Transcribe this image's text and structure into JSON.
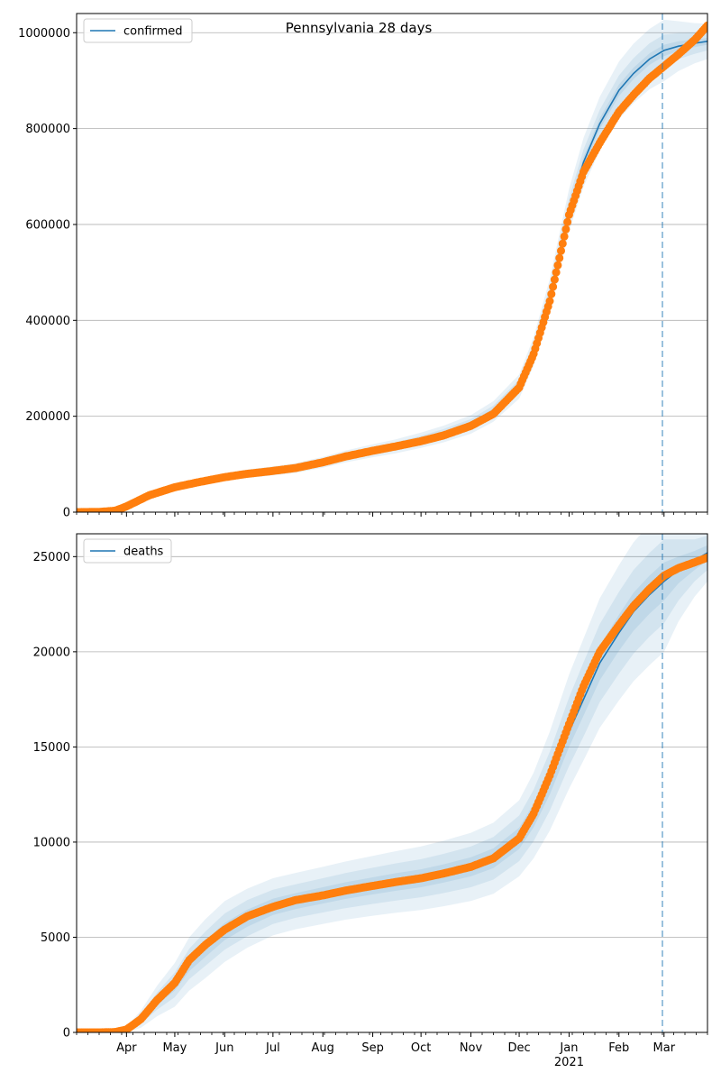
{
  "title": "Pennsylvania 28 days",
  "colors": {
    "model": "#1f77b4",
    "observed": "#ff7f0e",
    "band": "#1f77b4",
    "grid": "#b0b0b0",
    "forecast_line": "#1f77b4"
  },
  "x_ticks": [
    {
      "label": "Apr",
      "date": "2020-04-01"
    },
    {
      "label": "May",
      "date": "2020-05-01"
    },
    {
      "label": "Jun",
      "date": "2020-06-01"
    },
    {
      "label": "Jul",
      "date": "2020-07-01"
    },
    {
      "label": "Aug",
      "date": "2020-08-01"
    },
    {
      "label": "Sep",
      "date": "2020-09-01"
    },
    {
      "label": "Oct",
      "date": "2020-10-01"
    },
    {
      "label": "Nov",
      "date": "2020-11-01"
    },
    {
      "label": "Dec",
      "date": "2020-12-01"
    },
    {
      "label": "Jan",
      "date": "2021-01-01"
    },
    {
      "label": "Feb",
      "date": "2021-02-01"
    },
    {
      "label": "Mar",
      "date": "2021-03-01"
    }
  ],
  "x_year_label": {
    "label": "2021",
    "date": "2021-01-01"
  },
  "chart_data": [
    {
      "type": "line",
      "legend": "confirmed",
      "legend_position": "top-left",
      "grid": "y",
      "xlim": [
        "2020-03-01",
        "2021-03-28"
      ],
      "ylim": [
        0,
        1040000
      ],
      "yticks": [
        0,
        200000,
        400000,
        600000,
        800000,
        1000000
      ],
      "ytick_labels": [
        "0",
        "200000",
        "400000",
        "600000",
        "800000",
        "1000000"
      ],
      "forecast_start": "2021-02-28",
      "observed": {
        "dates": [
          "2020-03-01",
          "2020-03-15",
          "2020-03-25",
          "2020-04-01",
          "2020-04-15",
          "2020-05-01",
          "2020-05-15",
          "2020-06-01",
          "2020-06-15",
          "2020-07-01",
          "2020-07-15",
          "2020-08-01",
          "2020-08-15",
          "2020-09-01",
          "2020-09-15",
          "2020-10-01",
          "2020-10-15",
          "2020-11-01",
          "2020-11-15",
          "2020-12-01",
          "2020-12-10",
          "2020-12-20",
          "2021-01-01",
          "2021-01-10",
          "2021-01-20",
          "2021-02-01",
          "2021-02-10",
          "2021-02-20",
          "2021-03-01",
          "2021-03-10",
          "2021-03-20",
          "2021-03-28"
        ],
        "values": [
          0,
          500,
          3000,
          12000,
          35000,
          52000,
          62000,
          73000,
          80000,
          86000,
          92000,
          104000,
          116000,
          128000,
          137000,
          148000,
          160000,
          180000,
          205000,
          260000,
          330000,
          440000,
          620000,
          710000,
          770000,
          835000,
          870000,
          905000,
          930000,
          955000,
          985000,
          1015000
        ]
      },
      "model": {
        "dates": [
          "2020-03-01",
          "2020-03-15",
          "2020-03-25",
          "2020-04-01",
          "2020-04-15",
          "2020-05-01",
          "2020-05-15",
          "2020-06-01",
          "2020-06-15",
          "2020-07-01",
          "2020-07-15",
          "2020-08-01",
          "2020-08-15",
          "2020-09-01",
          "2020-09-15",
          "2020-10-01",
          "2020-10-15",
          "2020-11-01",
          "2020-11-15",
          "2020-12-01",
          "2020-12-10",
          "2020-12-20",
          "2021-01-01",
          "2021-01-10",
          "2021-01-20",
          "2021-02-01",
          "2021-02-10",
          "2021-02-20",
          "2021-03-01",
          "2021-03-10",
          "2021-03-20",
          "2021-03-28"
        ],
        "values": [
          0,
          500,
          3000,
          12000,
          35000,
          52000,
          62000,
          73000,
          80000,
          86000,
          92000,
          104000,
          116000,
          128000,
          137000,
          150000,
          163000,
          183000,
          210000,
          262000,
          335000,
          450000,
          630000,
          730000,
          810000,
          880000,
          915000,
          945000,
          963000,
          972000,
          978000,
          982000
        ],
        "band_widths": [
          [
            0,
            0,
            0,
            0,
            0,
            0,
            0,
            0,
            0,
            0,
            0,
            0,
            0,
            0,
            0,
            0,
            0,
            0,
            0,
            0,
            0,
            0,
            0,
            0,
            0,
            0,
            0,
            0,
            0,
            0,
            0,
            0
          ],
          [
            0,
            200,
            500,
            1000,
            1500,
            2000,
            2200,
            2400,
            2600,
            2800,
            3000,
            3300,
            3600,
            3900,
            4200,
            4600,
            5000,
            5500,
            6000,
            7000,
            8000,
            9000,
            10000,
            11000,
            11500,
            12000,
            12000,
            12000,
            12000,
            10000,
            8000,
            7000
          ],
          [
            0,
            400,
            1000,
            2000,
            3000,
            4000,
            4500,
            5000,
            5400,
            5800,
            6200,
            6800,
            7400,
            8000,
            8600,
            9400,
            10200,
            11300,
            12500,
            14500,
            17000,
            20000,
            24000,
            27000,
            29000,
            31000,
            32000,
            33000,
            33000,
            27000,
            22000,
            19000
          ],
          [
            0,
            700,
            2000,
            3500,
            5000,
            6500,
            7300,
            8000,
            8700,
            9400,
            10100,
            11200,
            12300,
            13500,
            14600,
            16000,
            17400,
            19300,
            21500,
            25000,
            30000,
            36000,
            44000,
            51000,
            56000,
            60000,
            62000,
            63000,
            64000,
            52000,
            42000,
            37000
          ]
        ]
      }
    },
    {
      "type": "line",
      "legend": "deaths",
      "legend_position": "top-left",
      "grid": "y",
      "xlim": [
        "2020-03-01",
        "2021-03-28"
      ],
      "ylim": [
        0,
        26200
      ],
      "yticks": [
        0,
        5000,
        10000,
        15000,
        20000,
        25000
      ],
      "ytick_labels": [
        "0",
        "5000",
        "10000",
        "15000",
        "20000",
        "25000"
      ],
      "forecast_start": "2021-02-28",
      "observed": {
        "dates": [
          "2020-03-01",
          "2020-03-15",
          "2020-03-25",
          "2020-04-01",
          "2020-04-10",
          "2020-04-20",
          "2020-05-01",
          "2020-05-10",
          "2020-05-20",
          "2020-06-01",
          "2020-06-15",
          "2020-07-01",
          "2020-07-15",
          "2020-08-01",
          "2020-08-15",
          "2020-09-01",
          "2020-09-15",
          "2020-10-01",
          "2020-10-15",
          "2020-11-01",
          "2020-11-15",
          "2020-12-01",
          "2020-12-10",
          "2020-12-20",
          "2021-01-01",
          "2021-01-10",
          "2021-01-20",
          "2021-02-01",
          "2021-02-10",
          "2021-02-20",
          "2021-03-01",
          "2021-03-10",
          "2021-03-20",
          "2021-03-28"
        ],
        "values": [
          0,
          0,
          20,
          150,
          700,
          1700,
          2600,
          3800,
          4600,
          5400,
          6100,
          6600,
          6950,
          7200,
          7450,
          7700,
          7900,
          8100,
          8350,
          8700,
          9150,
          10200,
          11500,
          13500,
          16200,
          18200,
          20000,
          21400,
          22400,
          23300,
          24000,
          24400,
          24700,
          24950
        ]
      },
      "model": {
        "dates": [
          "2020-03-01",
          "2020-03-15",
          "2020-03-25",
          "2020-04-01",
          "2020-04-10",
          "2020-04-20",
          "2020-05-01",
          "2020-05-10",
          "2020-05-20",
          "2020-06-01",
          "2020-06-15",
          "2020-07-01",
          "2020-07-15",
          "2020-08-01",
          "2020-08-15",
          "2020-09-01",
          "2020-09-15",
          "2020-10-01",
          "2020-10-15",
          "2020-11-01",
          "2020-11-15",
          "2020-12-01",
          "2020-12-10",
          "2020-12-20",
          "2021-01-01",
          "2021-01-10",
          "2021-01-20",
          "2021-02-01",
          "2021-02-10",
          "2021-02-20",
          "2021-03-01",
          "2021-03-10",
          "2021-03-20",
          "2021-03-28"
        ],
        "values": [
          0,
          0,
          20,
          150,
          700,
          1650,
          2500,
          3600,
          4400,
          5300,
          6000,
          6600,
          6900,
          7200,
          7450,
          7700,
          7900,
          8100,
          8350,
          8700,
          9150,
          10200,
          11400,
          13200,
          15800,
          17500,
          19400,
          21000,
          22100,
          23000,
          23700,
          24300,
          24800,
          25200
        ],
        "band_widths": [
          [
            0,
            0,
            0,
            0,
            0,
            0,
            0,
            0,
            0,
            0,
            0,
            0,
            0,
            0,
            0,
            0,
            0,
            0,
            0,
            0,
            0,
            0,
            0,
            0,
            0,
            0,
            0,
            0,
            0,
            0,
            0,
            0,
            0,
            0
          ],
          [
            0,
            0,
            10,
            40,
            100,
            200,
            300,
            380,
            430,
            450,
            450,
            430,
            420,
            430,
            440,
            450,
            460,
            470,
            480,
            500,
            520,
            560,
            620,
            700,
            800,
            850,
            900,
            950,
            1000,
            1000,
            1000,
            700,
            500,
            400
          ],
          [
            0,
            0,
            20,
            80,
            250,
            450,
            650,
            800,
            900,
            950,
            950,
            900,
            880,
            900,
            920,
            950,
            980,
            1000,
            1030,
            1070,
            1120,
            1200,
            1350,
            1550,
            1800,
            1950,
            2050,
            2150,
            2200,
            2200,
            2200,
            1600,
            1100,
            900
          ],
          [
            0,
            0,
            30,
            150,
            450,
            800,
            1150,
            1400,
            1550,
            1600,
            1550,
            1500,
            1480,
            1500,
            1530,
            1570,
            1620,
            1670,
            1720,
            1790,
            1870,
            2000,
            2250,
            2600,
            3000,
            3200,
            3400,
            3550,
            3650,
            3700,
            3700,
            2700,
            1900,
            1500
          ]
        ]
      }
    }
  ]
}
